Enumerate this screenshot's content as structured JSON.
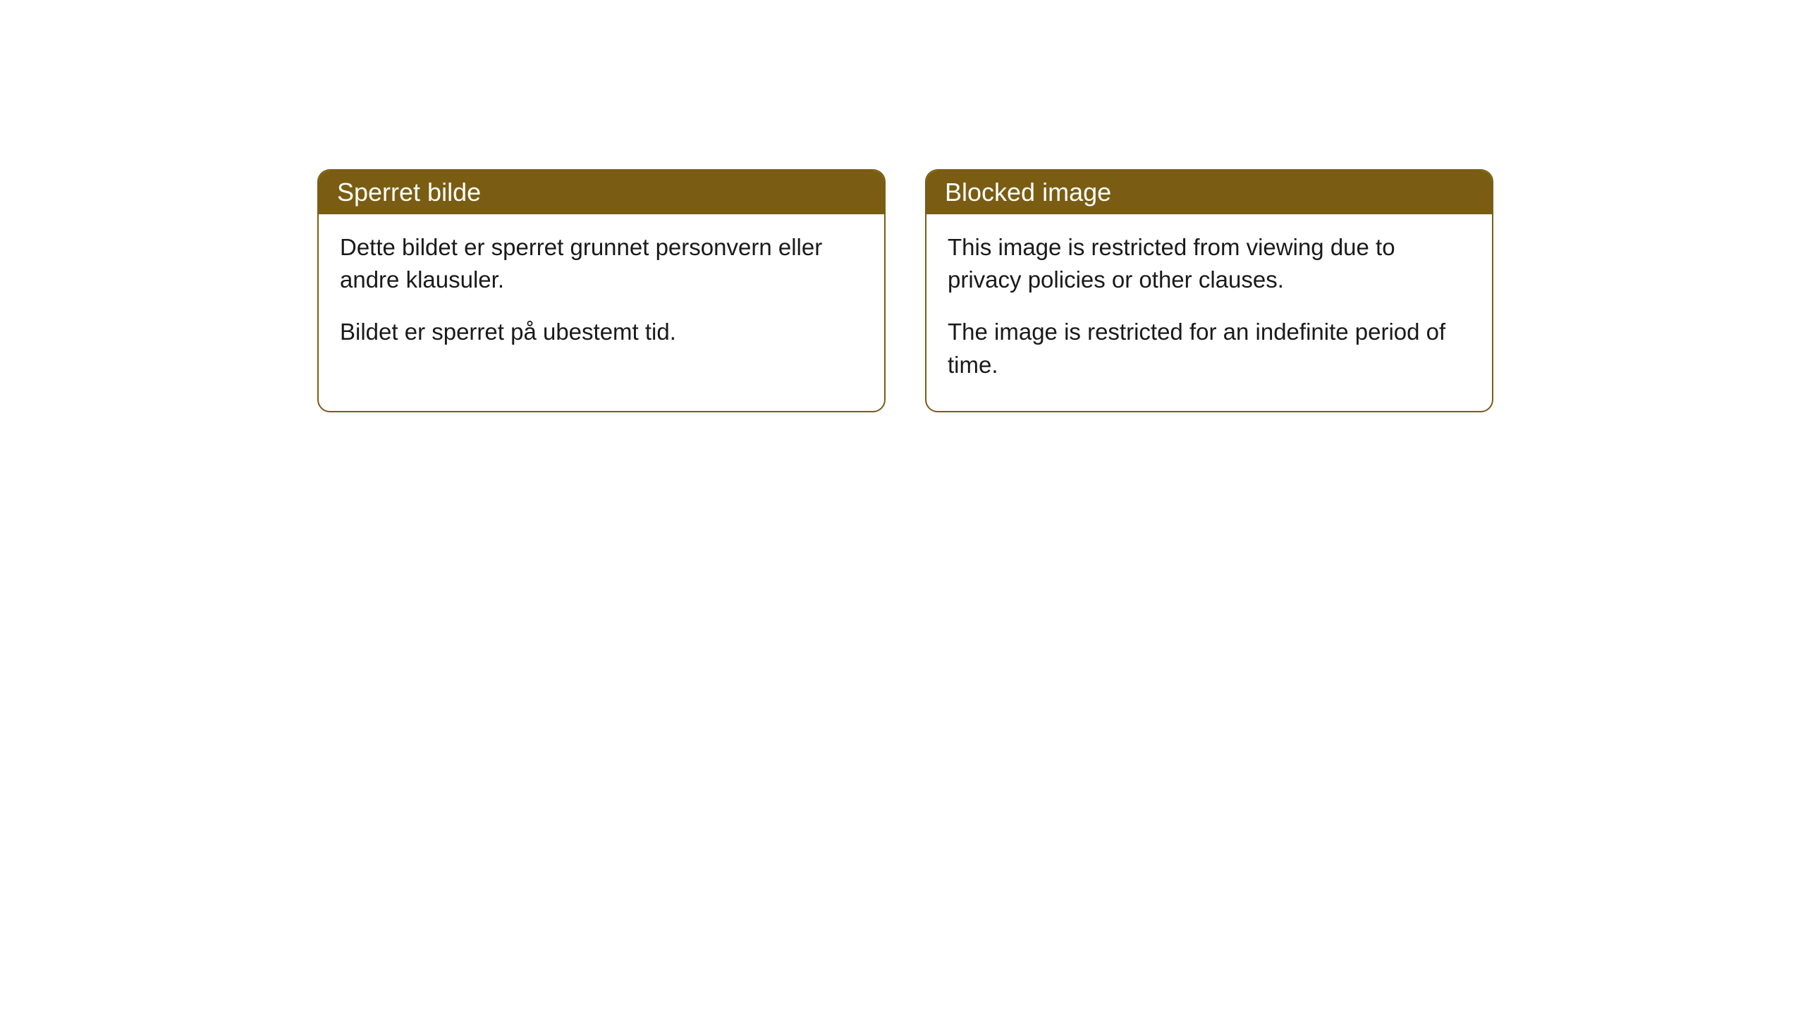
{
  "cards": [
    {
      "title": "Sperret bilde",
      "paragraph1": "Dette bildet er sperret grunnet personvern eller andre klausuler.",
      "paragraph2": "Bildet er sperret på ubestemt tid."
    },
    {
      "title": "Blocked image",
      "paragraph1": "This image is restricted from viewing due to privacy policies or other clauses.",
      "paragraph2": "The image is restricted for an indefinite period of time."
    }
  ],
  "style": {
    "header_background": "#7a5d13",
    "header_text_color": "#ffffff",
    "body_text_color": "#1a1a1a",
    "border_color": "#7a5d13",
    "border_radius": 18,
    "card_background": "#ffffff",
    "title_fontsize": 36,
    "body_fontsize": 33
  }
}
